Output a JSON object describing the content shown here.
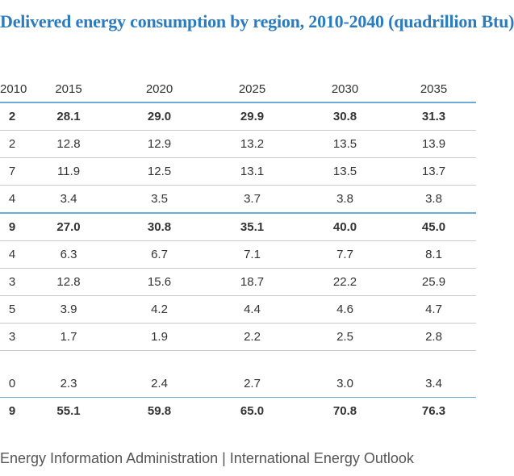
{
  "title": "Delivered energy consumption by region, 2010-2040 (quadrillion Btu)",
  "columns": [
    "2010",
    "2015",
    "2020",
    "2025",
    "2030",
    "2035"
  ],
  "rows": [
    {
      "cells": [
        "2",
        "28.1",
        "29.0",
        "29.9",
        "30.8",
        "31.3"
      ]
    },
    {
      "cells": [
        "2",
        "12.8",
        "12.9",
        "13.2",
        "13.5",
        "13.9"
      ]
    },
    {
      "cells": [
        "7",
        "11.9",
        "12.5",
        "13.1",
        "13.5",
        "13.7"
      ]
    },
    {
      "cells": [
        "4",
        "3.4",
        "3.5",
        "3.7",
        "3.8",
        "3.8"
      ]
    },
    {
      "cells": [
        "9",
        "27.0",
        "30.8",
        "35.1",
        "40.0",
        "45.0"
      ]
    },
    {
      "cells": [
        "4",
        "6.3",
        "6.7",
        "7.1",
        "7.7",
        "8.1"
      ]
    },
    {
      "cells": [
        "3",
        "12.8",
        "15.6",
        "18.7",
        "22.2",
        "25.9"
      ]
    },
    {
      "cells": [
        "5",
        "3.9",
        "4.2",
        "4.4",
        "4.6",
        "4.7"
      ]
    },
    {
      "cells": [
        "3",
        "1.7",
        "1.9",
        "2.2",
        "2.5",
        "2.8"
      ]
    },
    {
      "cells": [
        "0",
        "2.3",
        "2.4",
        "2.7",
        "3.0",
        "3.4"
      ]
    },
    {
      "cells": [
        "9",
        "55.1",
        "59.8",
        "65.0",
        "70.8",
        "76.3"
      ]
    }
  ],
  "footer": "Energy Information Administration | International Energy Outlook"
}
